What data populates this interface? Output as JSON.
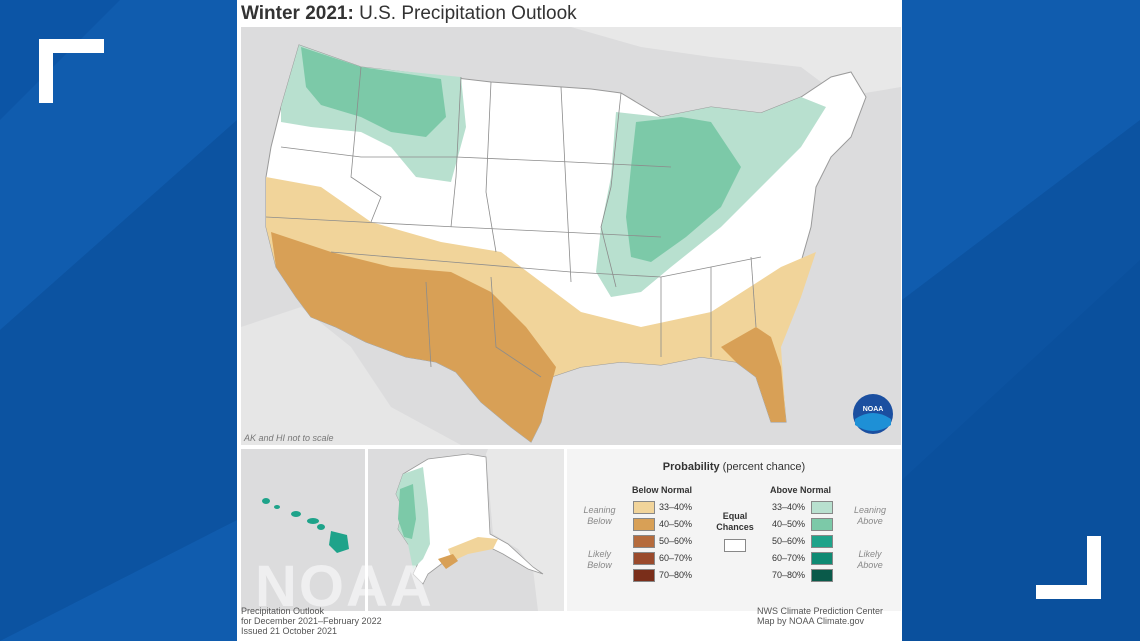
{
  "title": {
    "bold": "Winter 2021:",
    "rest": "U.S. Precipitation Outlook"
  },
  "map_note": "AK and HI not to scale",
  "legend": {
    "title_bold": "Probability",
    "title_rest": "(percent chance)",
    "below_header": "Below Normal",
    "above_header": "Above Normal",
    "equal_chances": "Equal Chances",
    "leaning_below": "Leaning Below",
    "likely_below": "Likely Below",
    "leaning_above": "Leaning Above",
    "likely_above": "Likely Above",
    "below": [
      {
        "label": "33–40%",
        "color": "#f1d49a"
      },
      {
        "label": "40–50%",
        "color": "#d8a056"
      },
      {
        "label": "50–60%",
        "color": "#b56b3c"
      },
      {
        "label": "60–70%",
        "color": "#9a4a2c"
      },
      {
        "label": "70–80%",
        "color": "#7a2e1a"
      }
    ],
    "above": [
      {
        "label": "33–40%",
        "color": "#b8e0cf"
      },
      {
        "label": "40–50%",
        "color": "#7cc9a8"
      },
      {
        "label": "50–60%",
        "color": "#1ea38a"
      },
      {
        "label": "60–70%",
        "color": "#0f8a73"
      },
      {
        "label": "70–80%",
        "color": "#0a5a4a"
      }
    ]
  },
  "footer_left": [
    "Precipitation Outlook",
    "for December 2021–February 2022",
    "Issued 21 October 2021"
  ],
  "footer_right": [
    "NWS Climate Prediction Center",
    "Map by NOAA Climate.gov"
  ],
  "watermark": "NOAA",
  "noaa_logo": "NOAA"
}
